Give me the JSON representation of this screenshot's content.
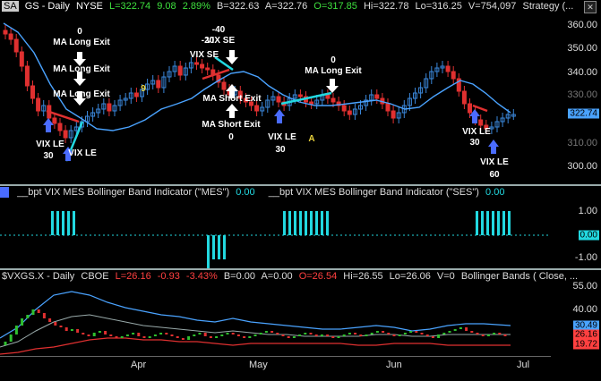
{
  "main": {
    "header": {
      "symbol_badge": "SA",
      "title": "GS - Daily",
      "exchange": "NYSE",
      "last": "L=322.74",
      "change": "9.08",
      "change_pct": "2.89%",
      "bid": "B=322.63",
      "ask": "A=322.76",
      "open": "O=317.85",
      "high": "Hi=322.78",
      "low": "Lo=316.25",
      "volume": "V=754,097",
      "strategy": "Strategy (..."
    },
    "price_axis": [
      "360.00",
      "350.00",
      "340.00",
      "330.00",
      "320.00",
      "310.00",
      "300.00"
    ],
    "last_price_tag": "322.74",
    "annotations": {
      "zero_a": "0",
      "ma_long_exit_1": "MA Long Exit",
      "ma_long_exit_2": "MA Long Exit",
      "ma_long_exit_3": "MA Long Exit",
      "vix_le_1": "VIX LE",
      "vix_le_1_qty": "30",
      "vix_le_2": "VIX LE",
      "nine": "9",
      "neg40": "-40",
      "neg20": "-20",
      "vix_se": "VIX SE",
      "ma_short_exit_1": "MA Short Exit",
      "ma_short_exit_2": "MA Short Exit",
      "ma_short_zero": "0",
      "vix_le_3": "VIX LE",
      "vix_le_3_qty": "30",
      "a_marker": "A",
      "zero_b": "0",
      "ma_long_exit_4": "MA Long Exit",
      "vix_le_4": "VIX LE",
      "vix_le_4_qty": "30",
      "vix_le_5": "VIX LE",
      "vix_le_5_qty": "60"
    }
  },
  "indicator": {
    "header": {
      "label_mes": "__bpt VIX MES Bollinger Band Indicator (\"MES\")",
      "value_mes": "0.00",
      "label_ses": "__bpt VIX MES Bollinger Band Indicator (\"SES\")",
      "value_ses": "0.00"
    },
    "axis": [
      "1.00",
      "0.00",
      "-1.00"
    ],
    "zero_tag": "0.00"
  },
  "vix": {
    "header": {
      "title": "$VXGS.X - Daily",
      "exchange": "CBOE",
      "last": "L=26.16",
      "change": "-0.93",
      "change_pct": "-3.43%",
      "bid": "B=0.00",
      "ask": "A=0.00",
      "open": "O=26.54",
      "high": "Hi=26.55",
      "low": "Lo=26.06",
      "volume": "V=0",
      "study": "Bollinger Bands ( Close, ..."
    },
    "axis": [
      "55.00",
      "40.00",
      "25.00"
    ],
    "tags": [
      "30.49",
      "26.16",
      "19.72"
    ]
  },
  "time_axis": [
    "Apr",
    "May",
    "Jun",
    "Jul"
  ],
  "colors": {
    "up": "#3a86d8",
    "down": "#e03030",
    "ma": "#4aa3ff",
    "histogram": "#22d8e0",
    "accent_yellow": "#e8d23c"
  }
}
